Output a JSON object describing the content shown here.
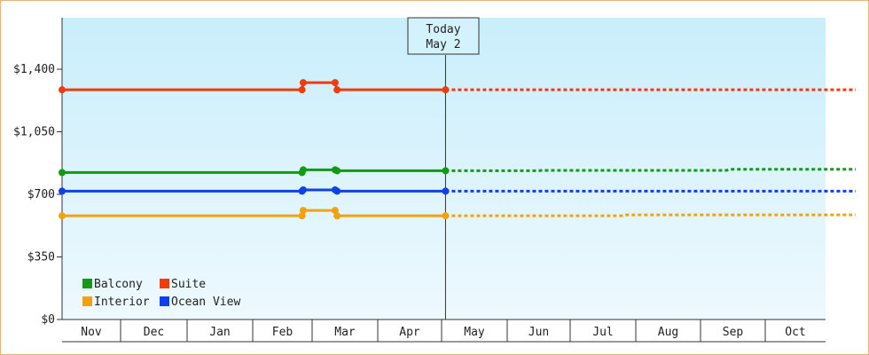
{
  "chart_data": {
    "type": "line",
    "x": [
      "Nov",
      "Dec",
      "Jan",
      "Feb",
      "Mar",
      "Apr",
      "May",
      "Jun",
      "Jul",
      "Aug",
      "Sep",
      "Oct"
    ],
    "y_ticks": [
      "$0",
      "$350",
      "$700",
      "$1,050",
      "$1,400"
    ],
    "ylim": [
      0,
      1400
    ],
    "today_marker": {
      "line1": "Today",
      "line2": "May 2"
    },
    "legend_position": "bottom-left",
    "background_gradient": [
      "#c9eefb",
      "#eef9fe"
    ],
    "series": [
      {
        "name": "Balcony",
        "color": "#129a12",
        "history": [
          [
            0,
            822
          ],
          [
            3.83,
            822
          ],
          [
            3.85,
            837
          ],
          [
            4.35,
            837
          ],
          [
            4.38,
            832
          ],
          [
            6.06,
            832
          ]
        ],
        "projected": [
          [
            6.06,
            832
          ],
          [
            7.5,
            832
          ],
          [
            7.55,
            834
          ],
          [
            10.4,
            834
          ],
          [
            10.45,
            840
          ],
          [
            12.5,
            840
          ]
        ]
      },
      {
        "name": "Suite",
        "color": "#f03a0f",
        "history": [
          [
            0,
            1285
          ],
          [
            3.83,
            1285
          ],
          [
            3.85,
            1325
          ],
          [
            4.35,
            1325
          ],
          [
            4.38,
            1285
          ],
          [
            6.06,
            1285
          ]
        ],
        "projected": [
          [
            6.06,
            1285
          ],
          [
            12.5,
            1285
          ]
        ]
      },
      {
        "name": "Interior",
        "color": "#f2a20f",
        "history": [
          [
            0,
            580
          ],
          [
            3.83,
            580
          ],
          [
            3.85,
            610
          ],
          [
            4.35,
            610
          ],
          [
            4.38,
            580
          ],
          [
            6.06,
            580
          ]
        ],
        "projected": [
          [
            6.06,
            580
          ],
          [
            8.8,
            580
          ],
          [
            8.85,
            585
          ],
          [
            12.5,
            585
          ]
        ]
      },
      {
        "name": "Ocean View",
        "color": "#1040e8",
        "history": [
          [
            0,
            718
          ],
          [
            3.83,
            718
          ],
          [
            3.85,
            725
          ],
          [
            4.35,
            725
          ],
          [
            4.38,
            718
          ],
          [
            6.06,
            718
          ]
        ],
        "projected": [
          [
            6.06,
            718
          ],
          [
            12.5,
            718
          ]
        ]
      }
    ]
  }
}
